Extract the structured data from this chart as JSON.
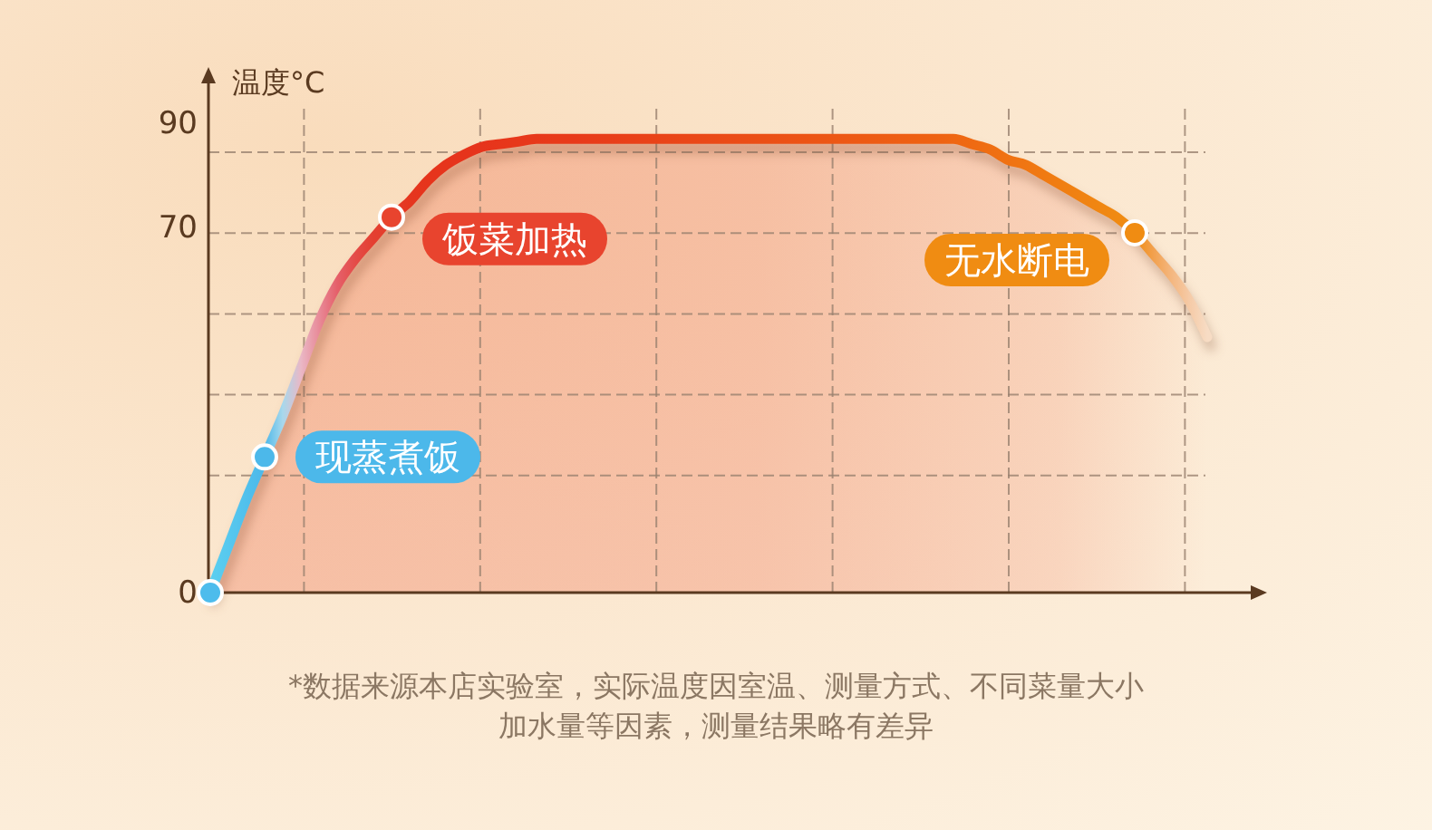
{
  "chart_data": {
    "type": "area",
    "ylabel": "温度°C",
    "categories": [
      null,
      null,
      null,
      null,
      null,
      null,
      null,
      null,
      null,
      null,
      null,
      null,
      null,
      null,
      null,
      null,
      null,
      null,
      null,
      null,
      null,
      null,
      null,
      null,
      null,
      null,
      null,
      null,
      null,
      null,
      null,
      null,
      null,
      null,
      null,
      null,
      null,
      null,
      null,
      null,
      null,
      null,
      null,
      null,
      null,
      null,
      null,
      null,
      null,
      null,
      null,
      null,
      null,
      null,
      null,
      null
    ],
    "series": [
      {
        "color": "#e8401e",
        "colors": [
          "#5ccff0",
          "#57c8ee",
          "#51c0ec",
          "#4cb8ea",
          "#a8d8ec",
          "#eab8c6",
          "#e88a98",
          "#e5606a",
          "#e44c48",
          "#e43f30",
          "#e43c2a",
          "#e5361f",
          "#e6341c",
          "#e6341c",
          "#e6341c",
          "#e6341c",
          "#e7361b",
          "#e7381b",
          "#e7381b",
          "#e83a1a",
          "#e83a1a",
          "#e83c1a",
          "#e83e19",
          "#e94019",
          "#e94219",
          "#e94418",
          "#ea4618",
          "#ea4818",
          "#ea4a17",
          "#eb4c17",
          "#eb4e16",
          "#eb5016",
          "#ec5216",
          "#ec5415",
          "#ec5615",
          "#ed5815",
          "#ed5a14",
          "#ed5c14",
          "#ee5e14",
          "#ee6013",
          "#ee6213",
          "#ef6613",
          "#ef6a12",
          "#ef6e12",
          "#f07212",
          "#f07612",
          "#f07a12",
          "#f07e12",
          "#f08212",
          "#f08612",
          "#f08a12",
          "#f08c12",
          "#f2a04c",
          "#f4b67e",
          "#f5caa6",
          "#f7dcc4"
        ],
        "values": [
          0,
          9,
          18,
          26,
          34,
          43,
          52,
          59,
          64,
          68,
          72,
          75,
          79,
          82,
          84,
          85.5,
          86,
          86.5,
          87,
          87,
          87,
          87,
          87,
          87,
          87,
          87,
          87,
          87,
          87,
          87,
          87,
          87,
          87,
          87,
          87,
          87,
          87,
          87,
          87,
          87,
          87,
          87,
          86,
          85,
          83,
          82,
          80,
          78,
          76,
          74,
          72,
          69,
          65,
          61,
          56,
          49
        ]
      },
      {
        "type": "scatter",
        "colors": [
          "#4dbcec",
          null,
          null,
          "#4cb8ea",
          null,
          null,
          null,
          null,
          null,
          null,
          "#e8442e",
          null,
          null,
          null,
          null,
          null,
          null,
          null,
          null,
          null,
          null,
          null,
          null,
          null,
          null,
          null,
          null,
          null,
          null,
          null,
          null,
          null,
          null,
          null,
          null,
          null,
          null,
          null,
          null,
          null,
          null,
          null,
          null,
          null,
          null,
          null,
          null,
          null,
          null,
          null,
          null,
          "#f08c12",
          null,
          null,
          null,
          null
        ],
        "values": [
          0,
          null,
          null,
          26,
          null,
          null,
          null,
          null,
          null,
          null,
          72,
          null,
          null,
          null,
          null,
          null,
          null,
          null,
          null,
          null,
          null,
          null,
          null,
          null,
          null,
          null,
          null,
          null,
          null,
          null,
          null,
          null,
          null,
          null,
          null,
          null,
          null,
          null,
          null,
          null,
          null,
          null,
          null,
          null,
          null,
          null,
          null,
          null,
          null,
          null,
          null,
          69,
          null,
          null,
          null,
          null
        ]
      }
    ],
    "ylim": [
      0,
      98
    ],
    "yticks": [
      0,
      70,
      90
    ],
    "grid": true,
    "tick_labels": "y",
    "annotations": [
      "现蒸煮饭",
      "饭菜加热",
      "无水断电",
      "*数据来源本店实验室，实际温度因室温、测量方式、不同菜量大小加水量等因素，测量结果略有差异"
    ]
  }
}
